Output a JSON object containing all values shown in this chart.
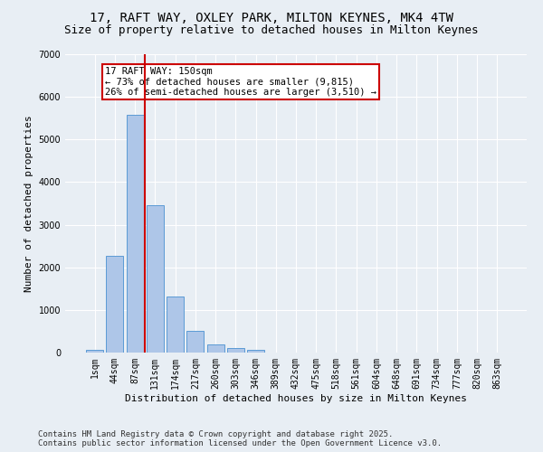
{
  "title_line1": "17, RAFT WAY, OXLEY PARK, MILTON KEYNES, MK4 4TW",
  "title_line2": "Size of property relative to detached houses in Milton Keynes",
  "xlabel": "Distribution of detached houses by size in Milton Keynes",
  "ylabel": "Number of detached properties",
  "categories": [
    "1sqm",
    "44sqm",
    "87sqm",
    "131sqm",
    "174sqm",
    "217sqm",
    "260sqm",
    "303sqm",
    "346sqm",
    "389sqm",
    "432sqm",
    "475sqm",
    "518sqm",
    "561sqm",
    "604sqm",
    "648sqm",
    "691sqm",
    "734sqm",
    "777sqm",
    "820sqm",
    "863sqm"
  ],
  "values": [
    70,
    2280,
    5580,
    3450,
    1310,
    510,
    200,
    100,
    60,
    0,
    0,
    0,
    0,
    0,
    0,
    0,
    0,
    0,
    0,
    0,
    0
  ],
  "bar_color": "#aec6e8",
  "bar_edge_color": "#5b9bd5",
  "vline_x_idx": 2,
  "vline_color": "#cc0000",
  "annotation_text": "17 RAFT WAY: 150sqm\n← 73% of detached houses are smaller (9,815)\n26% of semi-detached houses are larger (3,510) →",
  "annotation_box_color": "#ffffff",
  "annotation_box_edge": "#cc0000",
  "ylim": [
    0,
    7000
  ],
  "yticks": [
    0,
    1000,
    2000,
    3000,
    4000,
    5000,
    6000,
    7000
  ],
  "background_color": "#e8eef4",
  "grid_color": "#ffffff",
  "footer_line1": "Contains HM Land Registry data © Crown copyright and database right 2025.",
  "footer_line2": "Contains public sector information licensed under the Open Government Licence v3.0.",
  "title_fontsize": 10,
  "subtitle_fontsize": 9,
  "axis_label_fontsize": 8,
  "tick_fontsize": 7,
  "annotation_fontsize": 7.5,
  "footer_fontsize": 6.5
}
